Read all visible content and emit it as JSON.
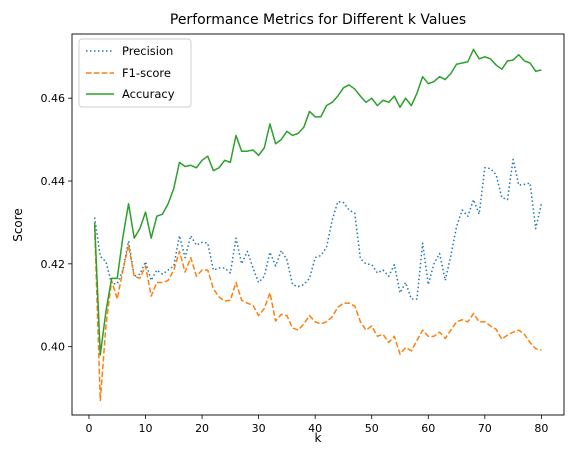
{
  "chart_data": {
    "type": "line",
    "title": "Performance Metrics for Different k Values",
    "xlabel": "k",
    "ylabel": "Score",
    "xlim": [
      -3,
      84
    ],
    "ylim": [
      0.3835,
      0.4755
    ],
    "xticks": [
      0,
      10,
      20,
      30,
      40,
      50,
      60,
      70,
      80
    ],
    "yticks": [
      0.4,
      0.42,
      0.44,
      0.46
    ],
    "ytick_labels": [
      "0.40",
      "0.42",
      "0.44",
      "0.46"
    ],
    "grid": false,
    "legend_position": "upper-left",
    "x": [
      1,
      2,
      3,
      4,
      5,
      6,
      7,
      8,
      9,
      10,
      11,
      12,
      13,
      14,
      15,
      16,
      17,
      18,
      19,
      20,
      21,
      22,
      23,
      24,
      25,
      26,
      27,
      28,
      29,
      30,
      31,
      32,
      33,
      34,
      35,
      36,
      37,
      38,
      39,
      40,
      41,
      42,
      43,
      44,
      45,
      46,
      47,
      48,
      49,
      50,
      51,
      52,
      53,
      54,
      55,
      56,
      57,
      58,
      59,
      60,
      61,
      62,
      63,
      64,
      65,
      66,
      67,
      68,
      69,
      70,
      71,
      72,
      73,
      74,
      75,
      76,
      77,
      78,
      79,
      80
    ],
    "series": [
      {
        "name": "Precision",
        "color": "#1f77b4",
        "dash": "dotted",
        "values": [
          0.4312,
          0.4218,
          0.4205,
          0.4152,
          0.4152,
          0.4185,
          0.4255,
          0.417,
          0.4175,
          0.4205,
          0.416,
          0.4185,
          0.4175,
          0.4185,
          0.4195,
          0.4268,
          0.4215,
          0.4268,
          0.4245,
          0.4252,
          0.425,
          0.4185,
          0.419,
          0.419,
          0.4178,
          0.4262,
          0.42,
          0.423,
          0.419,
          0.4155,
          0.417,
          0.4228,
          0.4195,
          0.4232,
          0.421,
          0.415,
          0.4145,
          0.415,
          0.4165,
          0.4215,
          0.422,
          0.424,
          0.4305,
          0.435,
          0.4348,
          0.433,
          0.4322,
          0.4212,
          0.42,
          0.4198,
          0.4178,
          0.4185,
          0.417,
          0.4198,
          0.413,
          0.4155,
          0.4115,
          0.4115,
          0.425,
          0.415,
          0.42,
          0.4225,
          0.416,
          0.422,
          0.429,
          0.433,
          0.4315,
          0.4355,
          0.432,
          0.4432,
          0.443,
          0.4415,
          0.436,
          0.4355,
          0.4452,
          0.439,
          0.4392,
          0.4395,
          0.4285,
          0.4345
        ]
      },
      {
        "name": "F1-score",
        "color": "#ff7f0e",
        "dash": "dashed",
        "values": [
          0.429,
          0.387,
          0.405,
          0.416,
          0.4115,
          0.4185,
          0.4245,
          0.417,
          0.4165,
          0.4195,
          0.4122,
          0.4155,
          0.4155,
          0.416,
          0.4185,
          0.423,
          0.418,
          0.4215,
          0.417,
          0.4185,
          0.4185,
          0.414,
          0.412,
          0.411,
          0.4112,
          0.4155,
          0.4112,
          0.4105,
          0.41,
          0.4075,
          0.4092,
          0.413,
          0.4062,
          0.4078,
          0.4075,
          0.4045,
          0.404,
          0.4055,
          0.4075,
          0.406,
          0.4055,
          0.406,
          0.4072,
          0.4095,
          0.4105,
          0.4105,
          0.4098,
          0.406,
          0.404,
          0.405,
          0.4025,
          0.403,
          0.401,
          0.4025,
          0.3982,
          0.3998,
          0.399,
          0.4015,
          0.404,
          0.4025,
          0.4025,
          0.4035,
          0.402,
          0.404,
          0.406,
          0.4065,
          0.406,
          0.408,
          0.406,
          0.406,
          0.405,
          0.4042,
          0.4018,
          0.4028,
          0.4035,
          0.404,
          0.403,
          0.401,
          0.3995,
          0.3992
        ]
      },
      {
        "name": "Accuracy",
        "color": "#2ca02c",
        "dash": "solid",
        "values": [
          0.43,
          0.398,
          0.4085,
          0.4165,
          0.4165,
          0.4265,
          0.4345,
          0.4262,
          0.4285,
          0.4325,
          0.4262,
          0.4315,
          0.432,
          0.4345,
          0.4382,
          0.4445,
          0.4435,
          0.4438,
          0.4432,
          0.445,
          0.446,
          0.4425,
          0.4432,
          0.445,
          0.4445,
          0.451,
          0.4472,
          0.4472,
          0.4475,
          0.4462,
          0.448,
          0.4538,
          0.449,
          0.45,
          0.452,
          0.451,
          0.4515,
          0.453,
          0.4568,
          0.4555,
          0.4555,
          0.4582,
          0.459,
          0.4605,
          0.4625,
          0.4632,
          0.4622,
          0.4605,
          0.459,
          0.46,
          0.4582,
          0.4595,
          0.459,
          0.4605,
          0.4578,
          0.46,
          0.4582,
          0.4612,
          0.4652,
          0.4635,
          0.464,
          0.4652,
          0.4645,
          0.466,
          0.4682,
          0.4685,
          0.4688,
          0.4718,
          0.4695,
          0.47,
          0.4695,
          0.468,
          0.467,
          0.469,
          0.4692,
          0.4705,
          0.469,
          0.4685,
          0.4665,
          0.4668
        ]
      }
    ]
  }
}
